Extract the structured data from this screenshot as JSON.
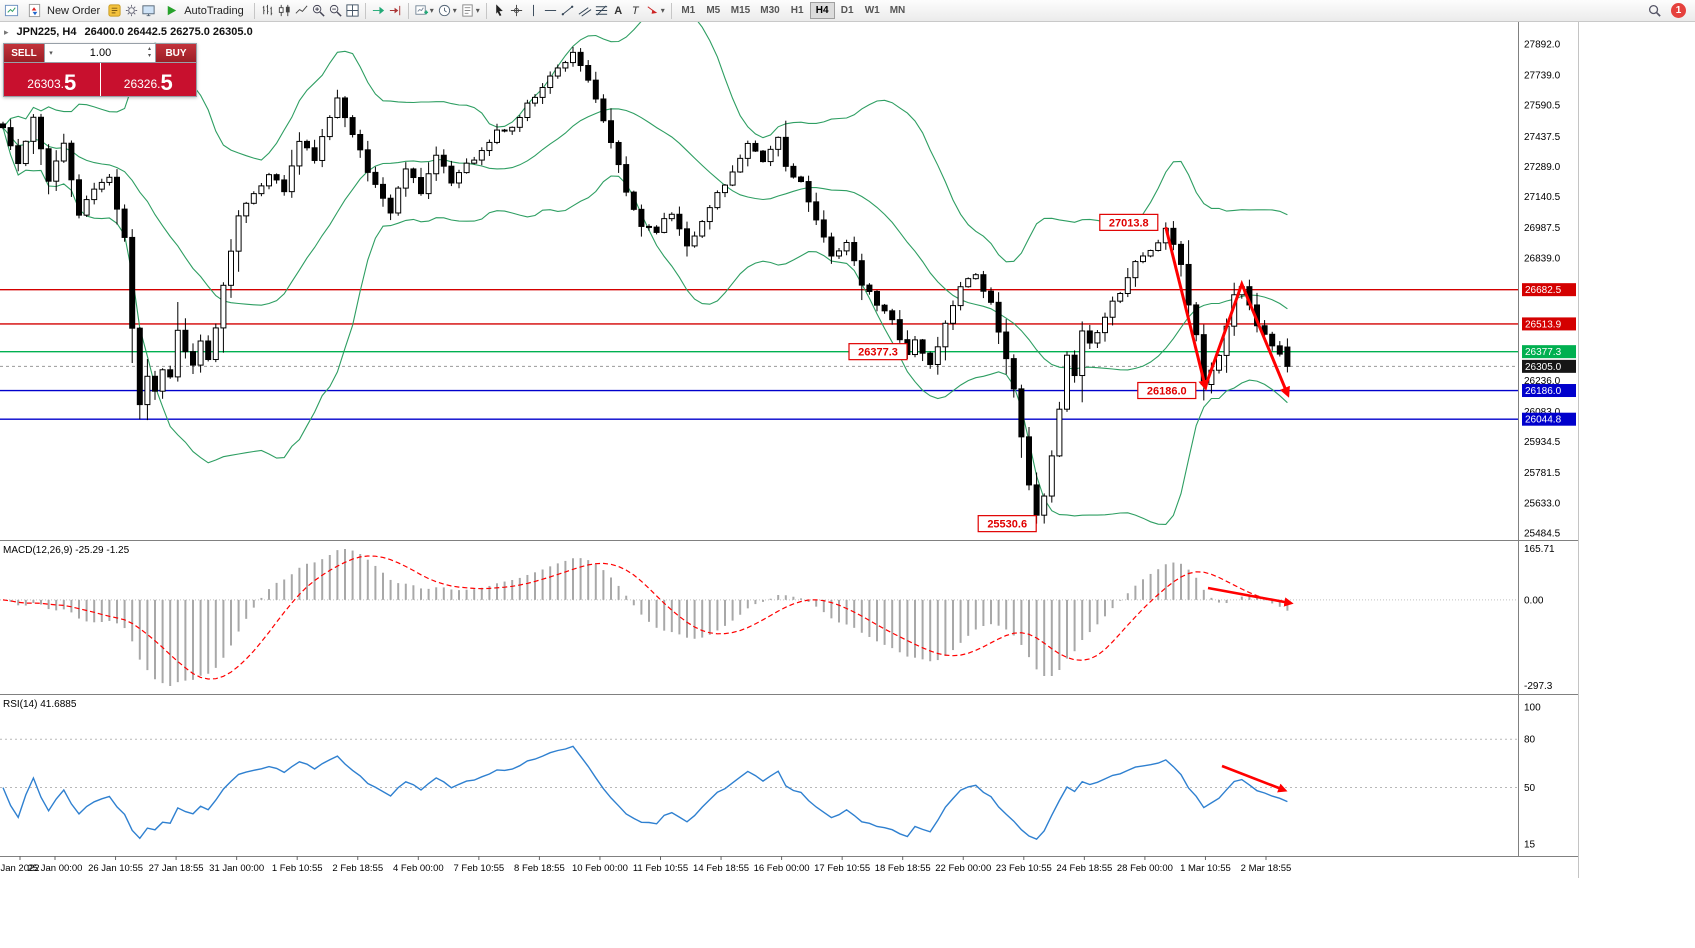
{
  "window": {
    "title_info": "JPN225, H4",
    "ohlc_info": "26400.0 26442.5 26275.0 26305.0"
  },
  "toolbar": {
    "new_order_label": "New Order",
    "autotrading_label": "AutoTrading",
    "timeframes": [
      "M1",
      "M5",
      "M15",
      "M30",
      "H1",
      "H4",
      "D1",
      "W1",
      "MN"
    ],
    "active_timeframe": "H4",
    "notification_count": "1",
    "icons": {
      "caret": "▾",
      "text_tool": "A",
      "label_tool": "T",
      "collapse": "▸",
      "spin_up": "▴",
      "spin_down": "▾"
    }
  },
  "one_click": {
    "sell_label": "SELL",
    "buy_label": "BUY",
    "volume": "1.00",
    "sell_price": "26303.5",
    "buy_price": "26326.5",
    "sell_price_main": "26303.",
    "sell_price_pips": "5",
    "buy_price_main": "26326.",
    "buy_price_pips": "5"
  },
  "price_axis": {
    "labels": [
      "27892.0",
      "27739.0",
      "27590.5",
      "27437.5",
      "27289.0",
      "27140.5",
      "26987.5",
      "26839.0",
      "26236.0",
      "26083.0",
      "25934.5",
      "25781.5",
      "25633.0",
      "25484.5"
    ],
    "badges": [
      {
        "text": "26682.5",
        "color": "#d40000"
      },
      {
        "text": "26513.9",
        "color": "#d40000"
      },
      {
        "text": "26377.3",
        "color": "#00b050"
      },
      {
        "text": "26305.0",
        "color": "#161616"
      },
      {
        "text": "26186.0",
        "color": "#0000cc"
      },
      {
        "text": "26044.8",
        "color": "#0000cc"
      }
    ]
  },
  "hlines": [
    {
      "price": 26682.5,
      "color": "#d40000"
    },
    {
      "price": 26513.9,
      "color": "#d40000"
    },
    {
      "price": 26377.3,
      "color": "#00b050"
    },
    {
      "price": 26186.0,
      "color": "#0000cc"
    },
    {
      "price": 26044.8,
      "color": "#0000cc"
    }
  ],
  "bid_line": {
    "price": 26305.0
  },
  "annotations": {
    "labels": [
      {
        "text": "27013.8",
        "i": 153,
        "price": 27013.8
      },
      {
        "text": "26377.3",
        "i": 120,
        "price": 26377.3
      },
      {
        "text": "26186.0",
        "i": 158,
        "price": 26186.0
      },
      {
        "text": "25530.6",
        "i": 137,
        "price": 25530.6
      }
    ],
    "arrows_price": [
      [
        [
          153,
          26990
        ],
        [
          158.2,
          26205
        ]
      ],
      [
        [
          158.2,
          26205
        ],
        [
          163,
          26710
        ],
        [
          169,
          26170
        ]
      ]
    ],
    "macd_arrow": [
      1208,
      588,
      1290,
      603
    ],
    "rsi_arrow": [
      1222,
      766,
      1284,
      790
    ]
  },
  "macd": {
    "label": "MACD(12,26,9) -25.29 -1.25",
    "axis_labels": [
      "165.71",
      "0.00",
      "-297.3"
    ]
  },
  "rsi": {
    "label": "RSI(14) 41.6885",
    "axis_labels": [
      "100",
      "80",
      "50",
      "15"
    ],
    "levels": [
      80,
      50
    ]
  },
  "time_axis": {
    "labels": [
      "Jan 2022",
      "25 Jan 00:00",
      "26 Jan 10:55",
      "27 Jan 18:55",
      "31 Jan 00:00",
      "1 Feb 10:55",
      "2 Feb 18:55",
      "4 Feb 00:00",
      "7 Feb 10:55",
      "8 Feb 18:55",
      "10 Feb 00:00",
      "11 Feb 10:55",
      "14 Feb 18:55",
      "16 Feb 00:00",
      "17 Feb 10:55",
      "18 Feb 18:55",
      "22 Feb 00:00",
      "23 Feb 10:55",
      "24 Feb 18:55",
      "28 Feb 00:00",
      "1 Mar 10:55",
      "2 Mar 18:55"
    ]
  },
  "chart_data": {
    "type": "candlestick",
    "symbol": "JPN225",
    "period": "H4",
    "seed": 11,
    "candle_count": 170,
    "noise": 16,
    "price_range": [
      25484.5,
      27892.0
    ],
    "indicators": [
      "Bollinger Bands (20,2)",
      "MACD(12,26,9)",
      "RSI(14)"
    ],
    "price_path": [
      [
        0,
        27480
      ],
      [
        2,
        27300
      ],
      [
        4,
        27520
      ],
      [
        6,
        27230
      ],
      [
        8,
        27400
      ],
      [
        10,
        27050
      ],
      [
        12,
        27180
      ],
      [
        14,
        27230
      ],
      [
        16,
        26950
      ],
      [
        17,
        26500
      ],
      [
        18,
        26120
      ],
      [
        19,
        26260
      ],
      [
        20,
        26180
      ],
      [
        21,
        26300
      ],
      [
        22,
        26250
      ],
      [
        23,
        26480
      ],
      [
        24,
        26380
      ],
      [
        25,
        26300
      ],
      [
        26,
        26420
      ],
      [
        27,
        26330
      ],
      [
        28,
        26500
      ],
      [
        29,
        26700
      ],
      [
        30,
        26880
      ],
      [
        31,
        27060
      ],
      [
        33,
        27140
      ],
      [
        35,
        27260
      ],
      [
        37,
        27170
      ],
      [
        39,
        27410
      ],
      [
        41,
        27330
      ],
      [
        43,
        27520
      ],
      [
        44,
        27630
      ],
      [
        46,
        27460
      ],
      [
        48,
        27260
      ],
      [
        50,
        27140
      ],
      [
        51,
        27060
      ],
      [
        53,
        27290
      ],
      [
        55,
        27170
      ],
      [
        57,
        27340
      ],
      [
        59,
        27210
      ],
      [
        61,
        27310
      ],
      [
        63,
        27360
      ],
      [
        65,
        27460
      ],
      [
        67,
        27480
      ],
      [
        69,
        27590
      ],
      [
        71,
        27690
      ],
      [
        73,
        27770
      ],
      [
        75,
        27855
      ],
      [
        76,
        27790
      ],
      [
        78,
        27610
      ],
      [
        80,
        27410
      ],
      [
        82,
        27160
      ],
      [
        84,
        27000
      ],
      [
        86,
        26980
      ],
      [
        88,
        27060
      ],
      [
        90,
        26910
      ],
      [
        92,
        27010
      ],
      [
        94,
        27160
      ],
      [
        96,
        27260
      ],
      [
        98,
        27390
      ],
      [
        100,
        27310
      ],
      [
        102,
        27430
      ],
      [
        103,
        27290
      ],
      [
        105,
        27210
      ],
      [
        107,
        27010
      ],
      [
        109,
        26860
      ],
      [
        111,
        26910
      ],
      [
        113,
        26710
      ],
      [
        115,
        26610
      ],
      [
        117,
        26530
      ],
      [
        119,
        26370
      ],
      [
        120,
        26430
      ],
      [
        122,
        26310
      ],
      [
        124,
        26510
      ],
      [
        126,
        26710
      ],
      [
        128,
        26760
      ],
      [
        130,
        26610
      ],
      [
        131,
        26460
      ],
      [
        133,
        26210
      ],
      [
        134,
        25960
      ],
      [
        135,
        25710
      ],
      [
        136,
        25570
      ],
      [
        137,
        25660
      ],
      [
        138,
        25860
      ],
      [
        139,
        26110
      ],
      [
        140,
        26360
      ],
      [
        141,
        26260
      ],
      [
        142,
        26490
      ],
      [
        143,
        26410
      ],
      [
        145,
        26560
      ],
      [
        147,
        26660
      ],
      [
        149,
        26810
      ],
      [
        151,
        26860
      ],
      [
        153,
        26995
      ],
      [
        155,
        26810
      ],
      [
        156,
        26610
      ],
      [
        157,
        26460
      ],
      [
        158,
        26230
      ],
      [
        159,
        26300
      ],
      [
        160,
        26360
      ],
      [
        161,
        26510
      ],
      [
        162,
        26660
      ],
      [
        163,
        26690
      ],
      [
        164,
        26610
      ],
      [
        165,
        26510
      ],
      [
        166,
        26460
      ],
      [
        167,
        26410
      ],
      [
        168,
        26350
      ],
      [
        169,
        26305
      ]
    ],
    "pins": [
      {
        "i": 18,
        "l": 26044.0
      },
      {
        "i": 75,
        "h": 27878.0
      },
      {
        "i": 136,
        "l": 25530.6
      },
      {
        "i": 153,
        "h": 27013.8
      },
      {
        "i": 169,
        "o": 26400.0,
        "h": 26442.5,
        "l": 26275.0,
        "c": 26305.0
      }
    ]
  },
  "colors": {
    "bands": "#2e9e62",
    "bull": "#ffffff",
    "bear": "#000000",
    "macd_hist": "#a8a8a8",
    "macd_signal": "#ff0000",
    "rsi": "#2f80d0",
    "arrow": "#ff0000",
    "hline_red": "#d40000",
    "hline_green": "#00b050",
    "hline_blue": "#0000cc"
  }
}
